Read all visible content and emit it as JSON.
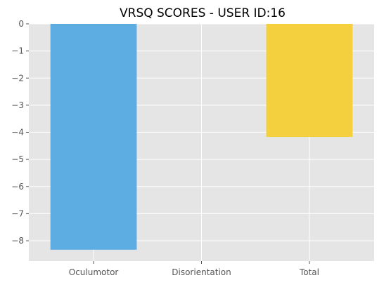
{
  "chart_data": {
    "type": "bar",
    "title": "VRSQ SCORES - USER ID:16",
    "xlabel": "",
    "ylabel": "",
    "categories": [
      "Oculumotor",
      "Disorientation",
      "Total"
    ],
    "values": [
      -8.33,
      0,
      -4.17
    ],
    "colors": [
      "#5dade2",
      "#5dade2",
      "#f4d03f"
    ],
    "ylim": [
      -8.75,
      0
    ],
    "yticks": [
      0,
      -1,
      -2,
      -3,
      -4,
      -5,
      -6,
      -7,
      -8
    ],
    "ytick_labels": [
      "0",
      "−1",
      "−2",
      "−3",
      "−4",
      "−5",
      "−6",
      "−7",
      "−8"
    ],
    "grid": true,
    "background": "#e5e5e5",
    "grid_color": "#ffffff"
  }
}
